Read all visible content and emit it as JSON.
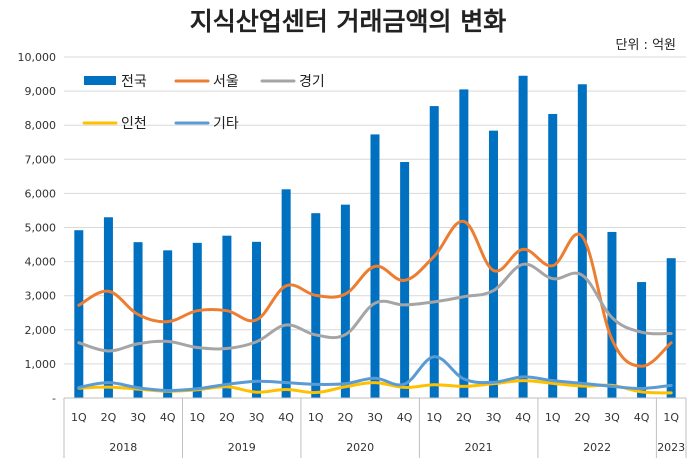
{
  "chart_data": {
    "type": "bar",
    "title": "지식산업센터 거래금액의 변화",
    "unit_label": "단위 : 억원",
    "categories": [
      "1Q",
      "2Q",
      "3Q",
      "4Q",
      "1Q",
      "2Q",
      "3Q",
      "4Q",
      "1Q",
      "2Q",
      "3Q",
      "4Q",
      "1Q",
      "2Q",
      "3Q",
      "4Q",
      "1Q",
      "2Q",
      "3Q",
      "4Q",
      "1Q"
    ],
    "years": [
      {
        "label": "2018",
        "start": 0,
        "end": 3
      },
      {
        "label": "2019",
        "start": 4,
        "end": 7
      },
      {
        "label": "2020",
        "start": 8,
        "end": 11
      },
      {
        "label": "2021",
        "start": 12,
        "end": 15
      },
      {
        "label": "2022",
        "start": 16,
        "end": 19
      },
      {
        "label": "2023",
        "start": 20,
        "end": 20
      }
    ],
    "ylim": [
      0,
      10000
    ],
    "yticks": [
      {
        "value": 0,
        "label": "-"
      },
      {
        "value": 1000,
        "label": "1,000"
      },
      {
        "value": 2000,
        "label": "2,000"
      },
      {
        "value": 3000,
        "label": "3,000"
      },
      {
        "value": 4000,
        "label": "4,000"
      },
      {
        "value": 5000,
        "label": "5,000"
      },
      {
        "value": 6000,
        "label": "6,000"
      },
      {
        "value": 7000,
        "label": "7,000"
      },
      {
        "value": 8000,
        "label": "8,000"
      },
      {
        "value": 9000,
        "label": "9,000"
      },
      {
        "value": 10000,
        "label": "10,000"
      }
    ],
    "grid": true,
    "legend_position": "top-left",
    "series": [
      {
        "name": "전국",
        "kind": "bar",
        "color": "#0070c0",
        "values": [
          4920,
          5300,
          4570,
          4330,
          4550,
          4760,
          4580,
          6120,
          5420,
          5670,
          7730,
          6920,
          8560,
          9050,
          7840,
          9450,
          8330,
          9200,
          4870,
          3400,
          4100
        ]
      },
      {
        "name": "서울",
        "kind": "line",
        "color": "#ed7d31",
        "values": [
          2720,
          3130,
          2450,
          2240,
          2560,
          2560,
          2290,
          3290,
          3010,
          3050,
          3860,
          3450,
          4160,
          5180,
          3740,
          4360,
          3880,
          4730,
          1720,
          930,
          1620
        ]
      },
      {
        "name": "경기",
        "kind": "line",
        "color": "#a5a5a5",
        "values": [
          1620,
          1380,
          1590,
          1660,
          1480,
          1450,
          1650,
          2140,
          1850,
          1860,
          2780,
          2730,
          2820,
          2970,
          3150,
          3920,
          3500,
          3600,
          2360,
          1930,
          1890
        ]
      },
      {
        "name": "인천",
        "kind": "line",
        "color": "#ffc000",
        "values": [
          290,
          320,
          260,
          200,
          240,
          330,
          170,
          250,
          160,
          330,
          450,
          310,
          390,
          340,
          420,
          510,
          430,
          350,
          370,
          180,
          150
        ]
      },
      {
        "name": "기타",
        "kind": "line",
        "color": "#5b9bd5",
        "values": [
          310,
          450,
          300,
          220,
          270,
          400,
          490,
          450,
          400,
          420,
          580,
          410,
          1210,
          560,
          460,
          620,
          510,
          430,
          340,
          280,
          370
        ]
      }
    ]
  }
}
